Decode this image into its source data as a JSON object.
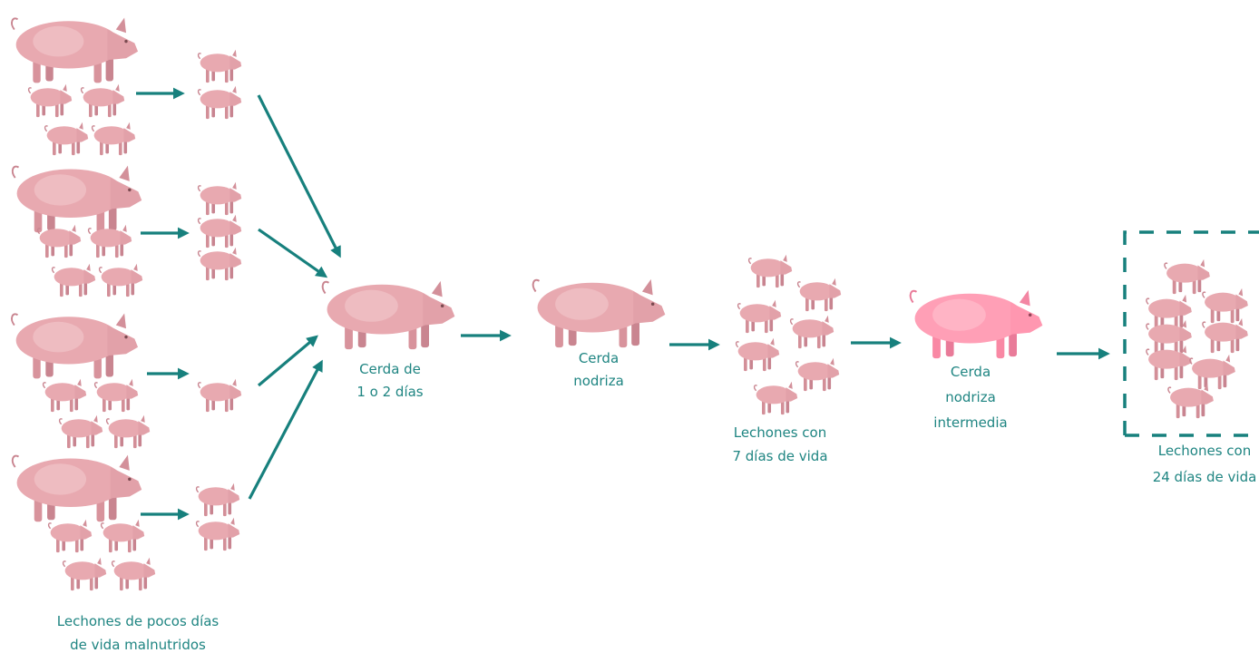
{
  "labels": {
    "malnourished": [
      "Lechones de pocos días",
      "de vida malnutridos"
    ],
    "sow_1_2_days": [
      "Cerda de",
      "1 o 2 días"
    ],
    "nurse_sow": [
      "Cerda",
      "nodriza"
    ],
    "piglets_7_days": [
      "Lechones con",
      "7 días de vida"
    ],
    "intermediate_nurse_sow": [
      "Cerda",
      "nodriza",
      "intermedia"
    ],
    "piglets_24_days": [
      "Lechones con",
      "24 días de vida"
    ]
  }
}
